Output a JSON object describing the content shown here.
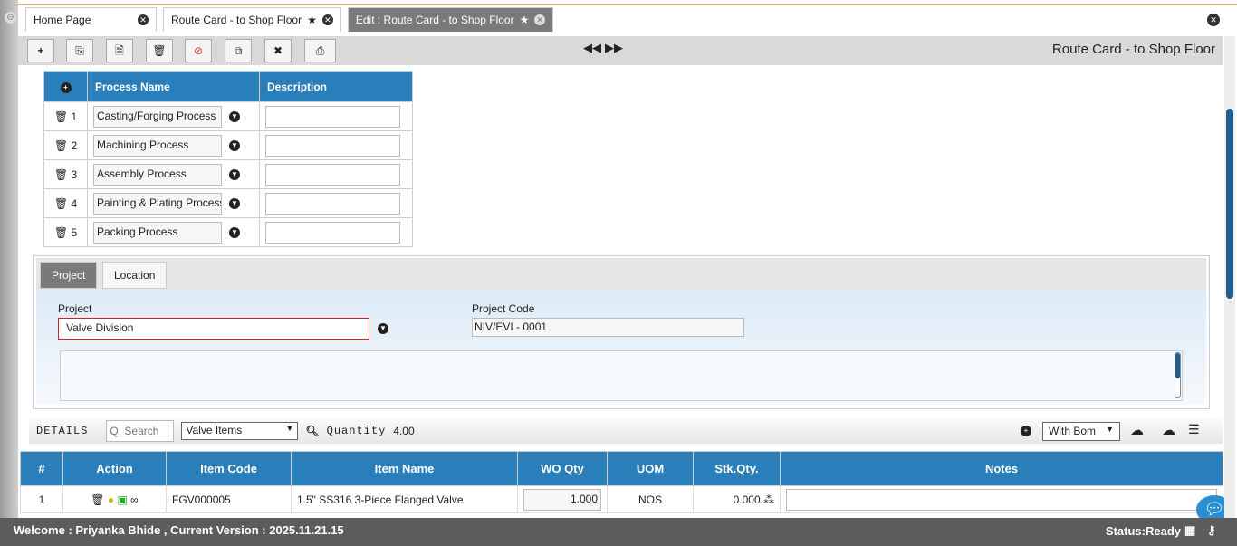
{
  "tabs": [
    {
      "label": "Home Page"
    },
    {
      "label": "Route Card - to Shop Floor"
    },
    {
      "label": "Edit : Route Card - to Shop Floor"
    }
  ],
  "toolbar": {
    "buttons": [
      "add-icon",
      "copy-icon",
      "document-icon",
      "trash-icon",
      "cancel-icon",
      "duplicate-icon",
      "close-icon",
      "print-icon"
    ],
    "title": "Route Card - to Shop Floor"
  },
  "process": {
    "headers": [
      "Process Name",
      "Description"
    ],
    "rows": [
      {
        "no": "1",
        "name": "Casting/Forging Process",
        "desc": ""
      },
      {
        "no": "2",
        "name": "Machining Process",
        "desc": ""
      },
      {
        "no": "3",
        "name": "Assembly Process",
        "desc": ""
      },
      {
        "no": "4",
        "name": "Painting & Plating Process",
        "desc": ""
      },
      {
        "no": "5",
        "name": "Packing Process",
        "desc": ""
      }
    ]
  },
  "project": {
    "tabs": [
      "Project",
      "Location"
    ],
    "project_label": "Project",
    "project_value": "Valve Division",
    "code_label": "Project Code",
    "code_value": "NIV/EVI - 0001"
  },
  "details": {
    "label": "DETAILS",
    "search_placeholder": "Q. Search",
    "category": "Valve Items",
    "qty_label": "Quantity",
    "qty_value": "4.00",
    "bom": "With Bom"
  },
  "grid": {
    "headers": [
      "#",
      "Action",
      "Item Code",
      "Item Name",
      "WO Qty",
      "UOM",
      "Stk.Qty.",
      "Notes"
    ],
    "rows": [
      {
        "no": "1",
        "code": "FGV000005",
        "name": "1.5\" SS316 3-Piece Flanged Valve",
        "wo_qty": "1.000",
        "uom": "NOS",
        "stk": "0.000",
        "notes": ""
      }
    ]
  },
  "footer": {
    "welcome": "Welcome : Priyanka Bhide , Current Version : 2025.11.21.15",
    "status": "Status:Ready"
  },
  "colors": {
    "header": "#2a7fba",
    "footer": "#5c5c5c",
    "required": "#cc2222"
  }
}
